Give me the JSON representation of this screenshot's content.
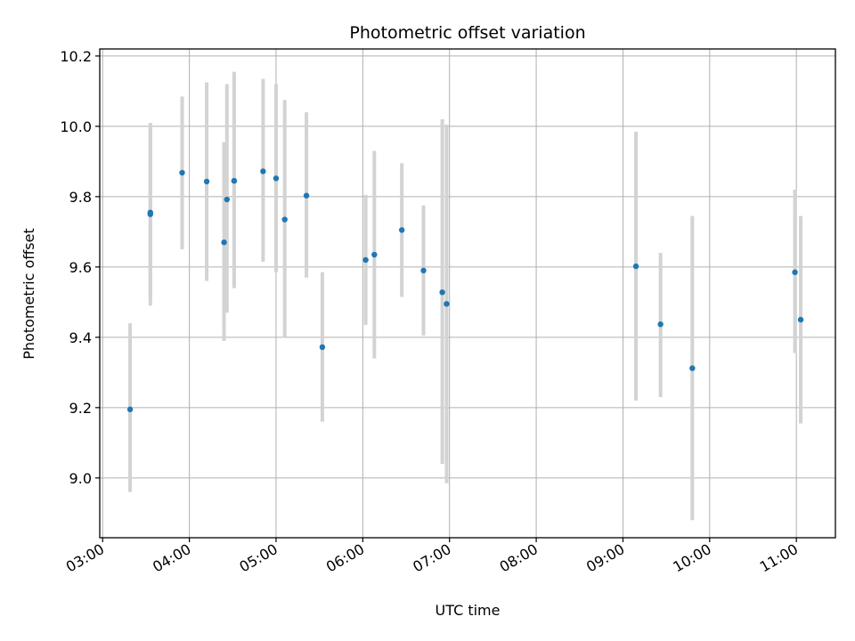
{
  "chart_data": {
    "type": "scatter",
    "title": "Photometric offset variation",
    "xlabel": "UTC time",
    "ylabel": "Photometric offset",
    "x_is_time": true,
    "xlim": [
      "02:58",
      "11:27"
    ],
    "ylim": [
      8.83,
      10.22
    ],
    "xticks": [
      "03:00",
      "04:00",
      "05:00",
      "06:00",
      "07:00",
      "08:00",
      "09:00",
      "10:00",
      "11:00"
    ],
    "yticks": [
      "9.0",
      "9.2",
      "9.4",
      "9.6",
      "9.8",
      "10.0",
      "10.2"
    ],
    "grid": true,
    "legend": "none",
    "marker_color": "#1f77b4",
    "errorbar_color": "#d3d3d3",
    "points": [
      {
        "t": "03:19",
        "y": 9.195,
        "lo": 8.96,
        "hi": 9.44
      },
      {
        "t": "03:33",
        "y": 9.75,
        "lo": 9.49,
        "hi": 10.01
      },
      {
        "t": "03:33",
        "y": 9.755,
        "lo": 9.51,
        "hi": 10.0
      },
      {
        "t": "03:55",
        "y": 9.868,
        "lo": 9.65,
        "hi": 10.085
      },
      {
        "t": "04:12",
        "y": 9.843,
        "lo": 9.56,
        "hi": 10.125
      },
      {
        "t": "04:24",
        "y": 9.67,
        "lo": 9.39,
        "hi": 9.955
      },
      {
        "t": "04:26",
        "y": 9.792,
        "lo": 9.47,
        "hi": 10.12
      },
      {
        "t": "04:31",
        "y": 9.845,
        "lo": 9.54,
        "hi": 10.155
      },
      {
        "t": "04:31",
        "y": 9.845,
        "lo": 9.55,
        "hi": 10.145
      },
      {
        "t": "04:51",
        "y": 9.872,
        "lo": 9.615,
        "hi": 10.135
      },
      {
        "t": "05:00",
        "y": 9.852,
        "lo": 9.585,
        "hi": 10.12
      },
      {
        "t": "05:06",
        "y": 9.735,
        "lo": 9.4,
        "hi": 10.075
      },
      {
        "t": "05:21",
        "y": 9.803,
        "lo": 9.57,
        "hi": 10.04
      },
      {
        "t": "05:32",
        "y": 9.372,
        "lo": 9.16,
        "hi": 9.585
      },
      {
        "t": "06:02",
        "y": 9.62,
        "lo": 9.435,
        "hi": 9.805
      },
      {
        "t": "06:08",
        "y": 9.635,
        "lo": 9.34,
        "hi": 9.93
      },
      {
        "t": "06:27",
        "y": 9.705,
        "lo": 9.515,
        "hi": 9.895
      },
      {
        "t": "06:42",
        "y": 9.59,
        "lo": 9.405,
        "hi": 9.775
      },
      {
        "t": "06:55",
        "y": 9.528,
        "lo": 9.04,
        "hi": 10.02
      },
      {
        "t": "06:58",
        "y": 9.495,
        "lo": 8.985,
        "hi": 10.005
      },
      {
        "t": "09:09",
        "y": 9.602,
        "lo": 9.22,
        "hi": 9.985
      },
      {
        "t": "09:26",
        "y": 9.437,
        "lo": 9.23,
        "hi": 9.64
      },
      {
        "t": "09:48",
        "y": 9.312,
        "lo": 8.88,
        "hi": 9.745
      },
      {
        "t": "10:59",
        "y": 9.585,
        "lo": 9.355,
        "hi": 9.82
      },
      {
        "t": "11:03",
        "y": 9.45,
        "lo": 9.155,
        "hi": 9.745
      }
    ]
  }
}
